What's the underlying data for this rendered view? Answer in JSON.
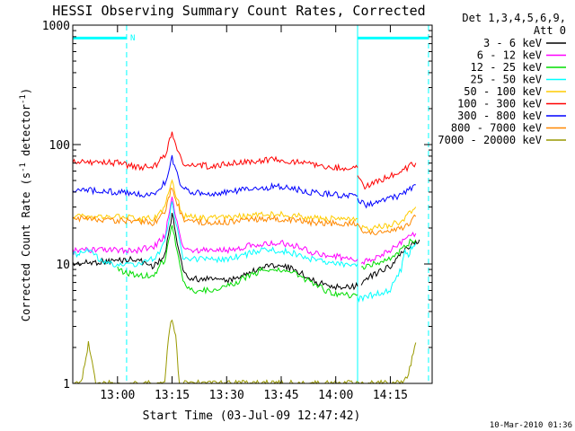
{
  "chart_data": {
    "type": "line",
    "title": "HESSI Observing Summary Count Rates, Corrected",
    "xlabel": "Start Time (03-Jul-09 12:47:42)",
    "ylabel_main": "Corrected Count Rate (s",
    "ylabel_sup1": "-1",
    "ylabel_mid": " detector",
    "ylabel_sup2": "-1",
    "ylabel_end": ")",
    "y_scale": "log",
    "ylim": [
      1,
      1000
    ],
    "xlim": [
      "12:47:42",
      "14:26:30"
    ],
    "x_ticks": [
      {
        "t": "13:00",
        "label": "13:00"
      },
      {
        "t": "13:15",
        "label": "13:15"
      },
      {
        "t": "13:30",
        "label": "13:30"
      },
      {
        "t": "13:45",
        "label": "13:45"
      },
      {
        "t": "14:00",
        "label": "14:00"
      },
      {
        "t": "14:15",
        "label": "14:15"
      }
    ],
    "y_ticks": [
      {
        "v": 1,
        "label": "1"
      },
      {
        "v": 10,
        "label": "10"
      },
      {
        "v": 100,
        "label": "100"
      },
      {
        "v": 1000,
        "label": "1000"
      }
    ],
    "legend_position": "top-right, outside plot",
    "legend_header_1": "Det 1,3,4,5,6,9,",
    "legend_header_2": "Att 0",
    "series": [
      {
        "name": "3 - 6 keV",
        "color": "#000000",
        "points": [
          [
            "12:47:42",
            10
          ],
          [
            "13:05",
            11
          ],
          [
            "13:10",
            9.5
          ],
          [
            "13:13",
            12
          ],
          [
            "13:14",
            18
          ],
          [
            "13:15",
            26
          ],
          [
            "13:16",
            18
          ],
          [
            "13:18",
            9
          ],
          [
            "13:20",
            7.5
          ],
          [
            "13:25",
            7.5
          ],
          [
            "13:30",
            7.2
          ],
          [
            "13:40",
            9.5
          ],
          [
            "13:45",
            10
          ],
          [
            "13:50",
            8.5
          ],
          [
            "13:55",
            7
          ],
          [
            "14:00",
            6.5
          ],
          [
            "14:05",
            6.5
          ],
          [
            "14:06",
            6.5
          ]
        ]
      },
      {
        "name": "6 - 12 keV",
        "color": "#ff00ff",
        "points": [
          [
            "12:47:42",
            13
          ],
          [
            "13:05",
            13
          ],
          [
            "13:10",
            14
          ],
          [
            "13:13",
            17
          ],
          [
            "13:14",
            25
          ],
          [
            "13:15",
            38
          ],
          [
            "13:16",
            25
          ],
          [
            "13:18",
            14
          ],
          [
            "13:20",
            13
          ],
          [
            "13:30",
            13
          ],
          [
            "13:40",
            15
          ],
          [
            "13:45",
            15
          ],
          [
            "13:50",
            14
          ],
          [
            "13:55",
            12
          ],
          [
            "14:00",
            11.5
          ],
          [
            "14:06",
            11
          ]
        ]
      },
      {
        "name": "12 - 25 keV",
        "color": "#00dd00",
        "points": [
          [
            "13:00",
            9
          ],
          [
            "13:05",
            8
          ],
          [
            "13:10",
            8
          ],
          [
            "13:13",
            11
          ],
          [
            "13:14",
            16
          ],
          [
            "13:15",
            22
          ],
          [
            "13:16",
            15
          ],
          [
            "13:18",
            7
          ],
          [
            "13:20",
            6
          ],
          [
            "13:25",
            6
          ],
          [
            "13:30",
            6.5
          ],
          [
            "13:40",
            9
          ],
          [
            "13:45",
            9
          ],
          [
            "13:50",
            8
          ],
          [
            "13:55",
            6.5
          ],
          [
            "14:00",
            5.5
          ],
          [
            "14:06",
            5.5
          ]
        ]
      },
      {
        "name": "25 - 50 keV",
        "color": "#00ffff",
        "points": [
          [
            "12:47:42",
            12
          ],
          [
            "12:52",
            13
          ],
          [
            "12:57",
            10
          ],
          [
            "13:00",
            10
          ],
          [
            "13:05",
            10
          ],
          [
            "13:10",
            11
          ],
          [
            "13:13",
            15
          ],
          [
            "13:14",
            22
          ],
          [
            "13:15",
            34
          ],
          [
            "13:16",
            22
          ],
          [
            "13:18",
            11
          ],
          [
            "13:20",
            11
          ],
          [
            "13:30",
            11
          ],
          [
            "13:40",
            13
          ],
          [
            "13:45",
            13
          ],
          [
            "13:50",
            12
          ],
          [
            "13:55",
            10.5
          ],
          [
            "14:00",
            10
          ],
          [
            "14:06",
            10
          ]
        ]
      },
      {
        "name": "50 - 100 keV",
        "color": "#ffcc00",
        "points": [
          [
            "12:47:42",
            25
          ],
          [
            "13:00",
            25
          ],
          [
            "13:05",
            24
          ],
          [
            "13:10",
            24
          ],
          [
            "13:13",
            30
          ],
          [
            "13:14",
            38
          ],
          [
            "13:15",
            50
          ],
          [
            "13:16",
            38
          ],
          [
            "13:18",
            25
          ],
          [
            "13:25",
            24
          ],
          [
            "13:35",
            25
          ],
          [
            "13:40",
            26
          ],
          [
            "13:45",
            26
          ],
          [
            "13:55",
            24
          ],
          [
            "14:00",
            24
          ],
          [
            "14:06",
            24
          ]
        ]
      },
      {
        "name": "100 - 300 keV",
        "color": "#ff0000",
        "points": [
          [
            "12:47:42",
            72
          ],
          [
            "13:00",
            70
          ],
          [
            "13:05",
            65
          ],
          [
            "13:10",
            65
          ],
          [
            "13:13",
            80
          ],
          [
            "13:14",
            100
          ],
          [
            "13:15",
            128
          ],
          [
            "13:16",
            100
          ],
          [
            "13:18",
            70
          ],
          [
            "13:25",
            66
          ],
          [
            "13:35",
            72
          ],
          [
            "13:45",
            75
          ],
          [
            "13:55",
            66
          ],
          [
            "14:00",
            64
          ],
          [
            "14:06",
            64
          ]
        ]
      },
      {
        "name": "300 - 800 keV",
        "color": "#0000ff",
        "points": [
          [
            "12:47:42",
            42
          ],
          [
            "13:00",
            40
          ],
          [
            "13:05",
            39
          ],
          [
            "13:10",
            37
          ],
          [
            "13:13",
            48
          ],
          [
            "13:14",
            60
          ],
          [
            "13:15",
            78
          ],
          [
            "13:16",
            60
          ],
          [
            "13:18",
            42
          ],
          [
            "13:25",
            38
          ],
          [
            "13:35",
            42
          ],
          [
            "13:45",
            45
          ],
          [
            "13:55",
            39
          ],
          [
            "14:00",
            38
          ],
          [
            "14:06",
            37
          ]
        ]
      },
      {
        "name": "800 - 7000 keV",
        "color": "#ff8800",
        "points": [
          [
            "12:47:42",
            24
          ],
          [
            "13:00",
            23
          ],
          [
            "13:05",
            23
          ],
          [
            "13:10",
            22
          ],
          [
            "13:13",
            28
          ],
          [
            "13:14",
            35
          ],
          [
            "13:15",
            45
          ],
          [
            "13:16",
            35
          ],
          [
            "13:18",
            24
          ],
          [
            "13:25",
            22
          ],
          [
            "13:35",
            23
          ],
          [
            "13:45",
            24
          ],
          [
            "13:55",
            22
          ],
          [
            "14:00",
            22
          ],
          [
            "14:06",
            22
          ]
        ]
      },
      {
        "name": "7000 - 20000 keV",
        "color": "#999900",
        "points": [
          [
            "12:47:42",
            1
          ],
          [
            "12:50",
            1
          ],
          [
            "12:51",
            1.5
          ],
          [
            "12:52",
            2.2
          ],
          [
            "12:53",
            1.6
          ],
          [
            "12:54",
            1
          ],
          [
            "13:13",
            1
          ],
          [
            "13:14",
            2.5
          ],
          [
            "13:15",
            3.5
          ],
          [
            "13:16",
            2.5
          ],
          [
            "13:17",
            1
          ],
          [
            "14:18",
            1
          ],
          [
            "14:20",
            1.2
          ],
          [
            "14:21",
            1.6
          ],
          [
            "14:22",
            2.2
          ]
        ]
      },
      {
        "name": "3 - 6 keV",
        "color": "#000000",
        "points": [
          [
            "14:07",
            7
          ],
          [
            "14:10",
            8
          ],
          [
            "14:15",
            9.5
          ],
          [
            "14:18",
            12
          ],
          [
            "14:20",
            14
          ],
          [
            "14:22",
            15
          ],
          [
            "14:23",
            16
          ]
        ]
      },
      {
        "name": "6 - 12 keV",
        "color": "#ff00ff",
        "points": [
          [
            "14:07",
            10
          ],
          [
            "14:10",
            11
          ],
          [
            "14:15",
            13
          ],
          [
            "14:18",
            15
          ],
          [
            "14:20",
            17
          ],
          [
            "14:22",
            18
          ]
        ]
      },
      {
        "name": "12 - 25 keV",
        "color": "#00dd00",
        "points": [
          [
            "14:07",
            9
          ],
          [
            "14:10",
            10
          ],
          [
            "14:15",
            11
          ],
          [
            "14:18",
            13
          ],
          [
            "14:20",
            15
          ],
          [
            "14:22",
            16
          ]
        ]
      },
      {
        "name": "25 - 50 keV",
        "color": "#00ffff",
        "points": [
          [
            "14:06",
            5
          ],
          [
            "14:10",
            5.5
          ],
          [
            "14:15",
            6
          ],
          [
            "14:16",
            7
          ],
          [
            "14:18",
            9
          ],
          [
            "14:19",
            13
          ],
          [
            "14:20",
            12
          ],
          [
            "14:21",
            14
          ],
          [
            "14:22",
            15
          ]
        ]
      },
      {
        "name": "50 - 100 keV",
        "color": "#ffcc00",
        "points": [
          [
            "14:07",
            20
          ],
          [
            "14:10",
            20
          ],
          [
            "14:15",
            21
          ],
          [
            "14:18",
            23
          ],
          [
            "14:20",
            26
          ],
          [
            "14:22",
            30
          ]
        ]
      },
      {
        "name": "100 - 300 keV",
        "color": "#ff0000",
        "points": [
          [
            "14:06",
            58
          ],
          [
            "14:08",
            45
          ],
          [
            "14:10",
            47
          ],
          [
            "14:15",
            55
          ],
          [
            "14:18",
            60
          ],
          [
            "14:20",
            65
          ],
          [
            "14:22",
            70
          ]
        ]
      },
      {
        "name": "300 - 800 keV",
        "color": "#0000ff",
        "points": [
          [
            "14:06",
            36
          ],
          [
            "14:08",
            31
          ],
          [
            "14:10",
            32
          ],
          [
            "14:15",
            35
          ],
          [
            "14:18",
            38
          ],
          [
            "14:20",
            42
          ],
          [
            "14:22",
            46
          ]
        ]
      },
      {
        "name": "800 - 7000 keV",
        "color": "#ff8800",
        "points": [
          [
            "14:06",
            21
          ],
          [
            "14:08",
            18
          ],
          [
            "14:10",
            18
          ],
          [
            "14:15",
            19
          ],
          [
            "14:18",
            20
          ],
          [
            "14:20",
            22
          ],
          [
            "14:22",
            25
          ]
        ]
      }
    ],
    "overlays": [
      {
        "kind": "vline",
        "t": "12:47:42",
        "style": "solid",
        "color": "#00ffff"
      },
      {
        "kind": "vline",
        "t": "13:02:30",
        "style": "dashed",
        "color": "#00ffff"
      },
      {
        "kind": "vline",
        "t": "14:06:00",
        "style": "solid",
        "color": "#00ffff"
      },
      {
        "kind": "vline",
        "t": "14:25:30",
        "style": "dashed",
        "color": "#00ffff"
      },
      {
        "kind": "hbar",
        "t0": "12:47:42",
        "t1": "13:02:30",
        "v": 780,
        "color": "#00ffff"
      },
      {
        "kind": "hbar",
        "t0": "14:06:00",
        "t1": "14:25:30",
        "v": 780,
        "color": "#00ffff"
      }
    ],
    "annotations": [
      {
        "text": "N",
        "t": "13:03:30",
        "v": 800,
        "color": "#00ffff"
      }
    ],
    "timestamp": "10-Mar-2010 01:36"
  }
}
